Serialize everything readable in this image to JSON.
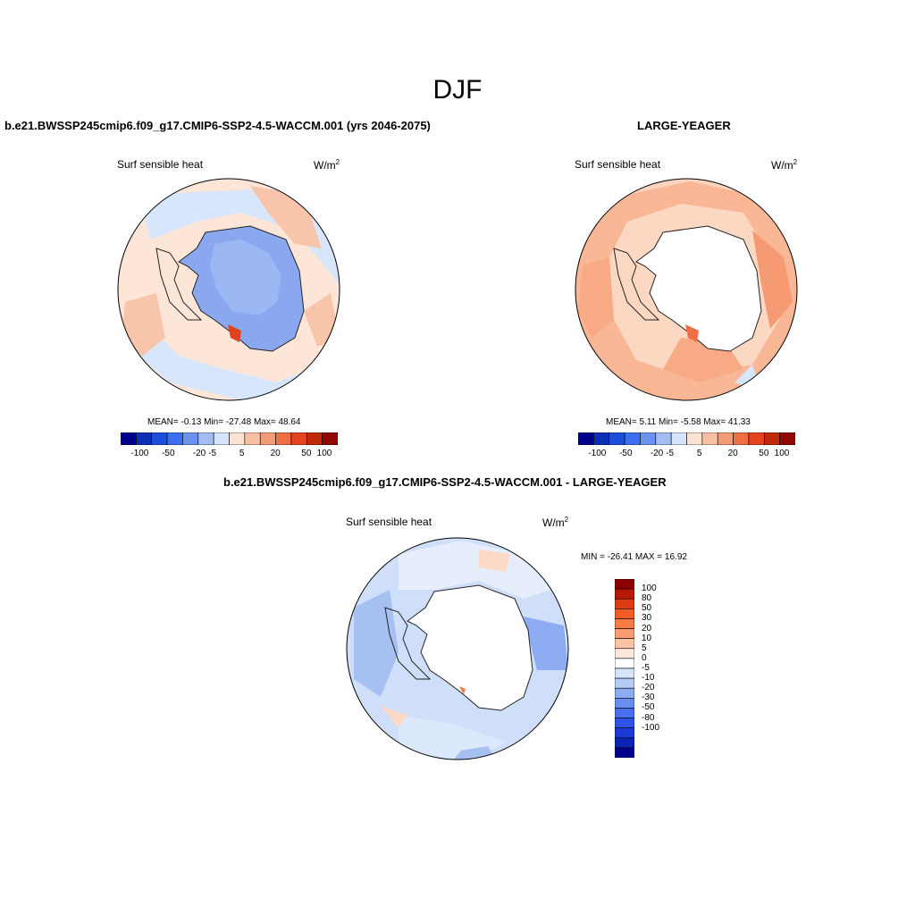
{
  "page_title": "DJF",
  "panel_a": {
    "title": "b.e21.BWSSP245cmip6.f09_g17.CMIP6-SSP2-4.5-WACCM.001 (yrs 2046-2075)",
    "variable": "Surf sensible heat",
    "units_base": "W/m",
    "units_exp": "2",
    "stats": "MEAN=  -0.13  Min= -27.48  Max=  48.64"
  },
  "panel_b": {
    "title": "LARGE-YEAGER",
    "variable": "Surf sensible heat",
    "units_base": "W/m",
    "units_exp": "2",
    "stats": "MEAN=   5.11  Min=  -5.58  Max=  41.33"
  },
  "panel_c": {
    "title": "b.e21.BWSSP245cmip6.f09_g17.CMIP6-SSP2-4.5-WACCM.001 - LARGE-YEAGER",
    "variable": "Surf sensible heat",
    "units_base": "W/m",
    "units_exp": "2",
    "stats": "MIN = -26.41 MAX =  16.92"
  },
  "colorbar_horizontal": {
    "colors": [
      "#00008b",
      "#0d2fb3",
      "#1c4fd9",
      "#3a6fef",
      "#6a93f0",
      "#a3bdf2",
      "#d4e3fa",
      "#fde3d2",
      "#f8c0a3",
      "#f39b77",
      "#ef6e45",
      "#e6431e",
      "#c02a08",
      "#8f0a02"
    ],
    "labels": [
      "-100",
      "-50",
      "-20",
      "-5",
      "5",
      "20",
      "50",
      "100"
    ]
  },
  "colorbar_vertical": {
    "colors": [
      "#8b0000",
      "#b81807",
      "#dc3a10",
      "#f25c25",
      "#f77b45",
      "#f99c71",
      "#fbc3a4",
      "#fde8dc",
      "#ffffff",
      "#d6e4fa",
      "#b4cbf5",
      "#8eacf1",
      "#6a8eef",
      "#4a71ed",
      "#2c55e7",
      "#1a3bd6",
      "#0b24b4",
      "#00008b"
    ],
    "labels": [
      "100",
      "80",
      "50",
      "30",
      "20",
      "10",
      "5",
      "0",
      "-5",
      "-10",
      "-20",
      "-30",
      "-50",
      "-80",
      "-100"
    ]
  }
}
